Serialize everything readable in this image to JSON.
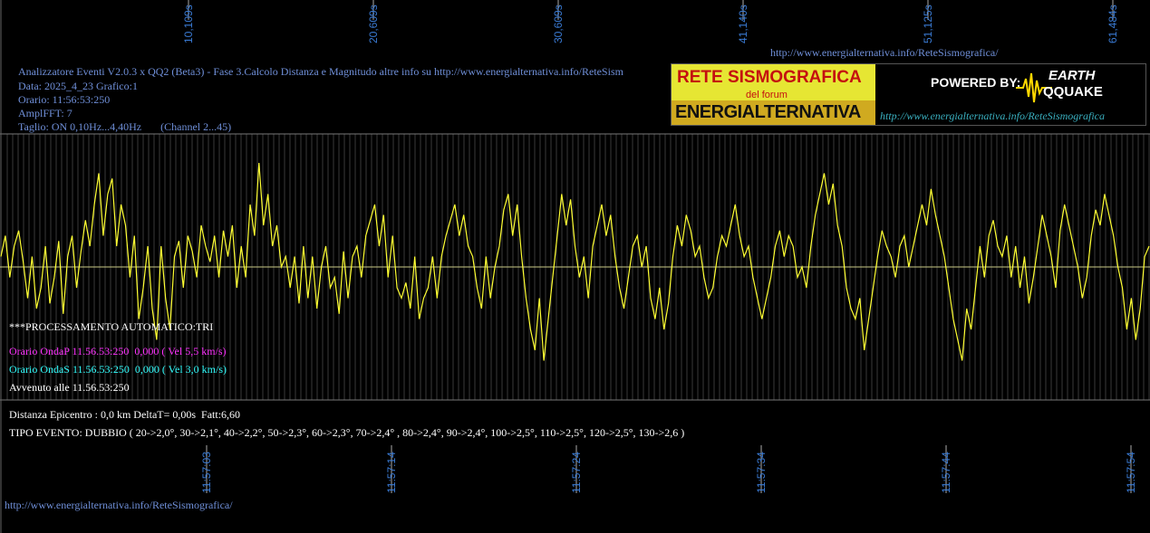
{
  "header": {
    "title_line": "Analizzatore Eventi V2.0.3 x QQ2 (Beta3) - Fase 3.Calcolo Distanza e Magnitudo altre info su http://www.energialternativa.info/ReteSism",
    "data_line": "Data: 2025_4_23 Grafico:1",
    "orario_line": "Orario: 11:56:53:250",
    "ampl_line": "AmplFFT: 7",
    "taglio_line": "Taglio: ON 0,10Hz...4,40Hz       (Channel 2...45)",
    "top_url": "http://www.energialternativa.info/ReteSismografica/"
  },
  "logo": {
    "title": "RETE SISMOGRAFICA",
    "subtitle": "del forum",
    "name": "ENERGIALTERNATIVA",
    "powered": "POWERED BY:",
    "earth": "EARTH",
    "quake": "QQUAKE",
    "url": "http://www.energialternativa.info/ReteSismografica"
  },
  "processing": {
    "auto": "***PROCESSAMENTO AUTOMATICO:TRI",
    "onda_p": "Orario OndaP 11.56.53:250  0,000 ( Vel 5,5 km/s)",
    "onda_s": "Orario OndaS 11.56.53:250  0,000 ( Vel 3,0 km/s)",
    "avvenuto": "Avvenuto alle 11.56.53:250"
  },
  "result": {
    "distanza": "Distanza Epicentro : 0,0 km DeltaT= 0,00s  Fatt:6,60",
    "tipo": "TIPO EVENTO: DUBBIO ( 20->2,0°, 30->2,1°, 40->2,2°, 50->2,3°, 60->2,3°, 70->2,4° , 80->2,4°, 90->2,4°, 100->2,5°, 110->2,5°, 120->2,5°, 130->2,6 )"
  },
  "footer_url": "http://www.energialternativa.info/ReteSismografica/",
  "colors": {
    "trace": "#ffff33",
    "axis_text": "#3a7bd5",
    "grid": "#555555",
    "baseline": "#cccc88"
  },
  "chart_data": {
    "type": "line",
    "top_ticks": [
      "10,109s",
      "20,609s",
      "30,609s",
      "41,140s",
      "51,125s",
      "61,484s"
    ],
    "bottom_ticks": [
      "11:57:03",
      "11:57:14",
      "11:57:24",
      "11:57:34",
      "11:57:44",
      "11:57:54"
    ],
    "x_range_s": [
      0,
      62.5
    ],
    "y_range": [
      -1,
      1
    ],
    "series": [
      {
        "values": [
          0.1,
          0.3,
          -0.1,
          0.2,
          0.35,
          0.05,
          -0.3,
          0.1,
          -0.4,
          -0.2,
          0.2,
          -0.35,
          -0.1,
          0.25,
          -0.45,
          0.1,
          0.3,
          -0.2,
          0.15,
          0.45,
          0.2,
          0.6,
          0.9,
          0.3,
          0.7,
          0.85,
          0.2,
          0.6,
          0.4,
          -0.1,
          0.3,
          -0.5,
          -0.2,
          0.2,
          -0.4,
          -0.7,
          0.2,
          -0.3,
          -0.6,
          0.1,
          0.25,
          -0.2,
          0.3,
          0.15,
          -0.1,
          0.4,
          0.2,
          0.05,
          0.3,
          -0.1,
          0.35,
          0.1,
          0.4,
          -0.2,
          0.2,
          -0.1,
          0.6,
          0.3,
          1.0,
          0.4,
          0.7,
          0.2,
          0.4,
          0.0,
          0.1,
          -0.2,
          0.1,
          -0.35,
          0.2,
          -0.3,
          0.1,
          -0.4,
          0.0,
          0.2,
          -0.2,
          -0.1,
          -0.45,
          0.15,
          -0.3,
          0.1,
          0.2,
          -0.1,
          0.3,
          0.45,
          0.6,
          0.2,
          0.5,
          -0.1,
          0.3,
          -0.2,
          -0.3,
          -0.15,
          -0.4,
          0.1,
          -0.5,
          -0.3,
          -0.2,
          0.1,
          -0.3,
          0.1,
          0.3,
          0.45,
          0.6,
          0.3,
          0.5,
          0.2,
          0.1,
          -0.2,
          -0.4,
          0.1,
          -0.3,
          0.0,
          0.2,
          0.55,
          0.7,
          0.3,
          0.6,
          0.1,
          -0.3,
          -0.6,
          -0.8,
          -0.3,
          -0.9,
          -0.5,
          -0.1,
          0.3,
          0.7,
          0.4,
          0.65,
          0.2,
          -0.1,
          0.1,
          -0.3,
          0.2,
          0.4,
          0.6,
          0.3,
          0.5,
          0.1,
          -0.2,
          -0.4,
          -0.1,
          0.2,
          0.3,
          0.0,
          0.2,
          -0.3,
          -0.5,
          -0.2,
          -0.6,
          -0.35,
          0.1,
          0.4,
          0.2,
          0.5,
          0.35,
          0.1,
          0.2,
          -0.1,
          -0.3,
          -0.2,
          0.1,
          0.3,
          0.2,
          0.4,
          0.6,
          0.3,
          0.1,
          0.2,
          -0.1,
          -0.3,
          -0.5,
          -0.3,
          -0.1,
          0.2,
          0.35,
          0.1,
          0.3,
          0.2,
          -0.1,
          0.0,
          -0.2,
          0.2,
          0.5,
          0.7,
          0.9,
          0.6,
          0.8,
          0.4,
          0.2,
          -0.2,
          -0.4,
          -0.5,
          -0.3,
          -0.8,
          -0.5,
          -0.2,
          0.1,
          0.35,
          0.2,
          0.1,
          -0.1,
          0.2,
          0.3,
          0.0,
          0.2,
          0.4,
          0.6,
          0.4,
          0.75,
          0.5,
          0.3,
          0.1,
          -0.2,
          -0.5,
          -0.7,
          -0.9,
          -0.4,
          -0.6,
          -0.2,
          0.2,
          -0.1,
          0.3,
          0.45,
          0.2,
          0.1,
          0.3,
          -0.1,
          0.2,
          -0.2,
          0.1,
          -0.35,
          -0.1,
          0.2,
          0.5,
          0.3,
          0.1,
          -0.2,
          0.35,
          0.6,
          0.4,
          0.2,
          0.0,
          -0.3,
          -0.1,
          0.3,
          0.55,
          0.4,
          0.7,
          0.5,
          0.3,
          0.0,
          -0.2,
          -0.6,
          -0.3,
          -0.7,
          -0.4,
          0.1,
          0.2
        ]
      }
    ]
  }
}
